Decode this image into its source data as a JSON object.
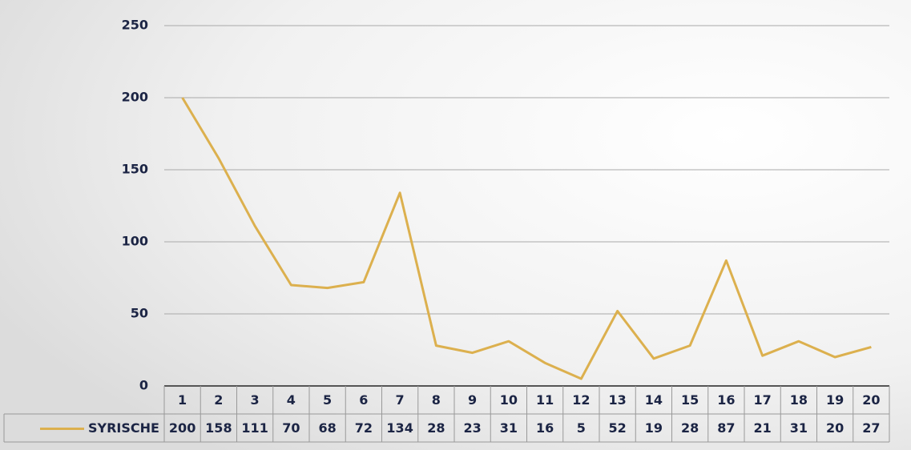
{
  "chart_data": {
    "type": "line",
    "categories": [
      "1",
      "2",
      "3",
      "4",
      "5",
      "6",
      "7",
      "8",
      "9",
      "10",
      "11",
      "12",
      "13",
      "14",
      "15",
      "16",
      "17",
      "18",
      "19",
      "20"
    ],
    "series": [
      {
        "name": "SYRISCHE",
        "color": "#dcb04e",
        "values": [
          200,
          158,
          111,
          70,
          68,
          72,
          134,
          28,
          23,
          31,
          16,
          5,
          52,
          19,
          28,
          87,
          21,
          31,
          20,
          27
        ]
      }
    ],
    "ylim": [
      0,
      250
    ],
    "yticks": [
      0,
      50,
      100,
      150,
      200,
      250
    ],
    "grid": true
  }
}
